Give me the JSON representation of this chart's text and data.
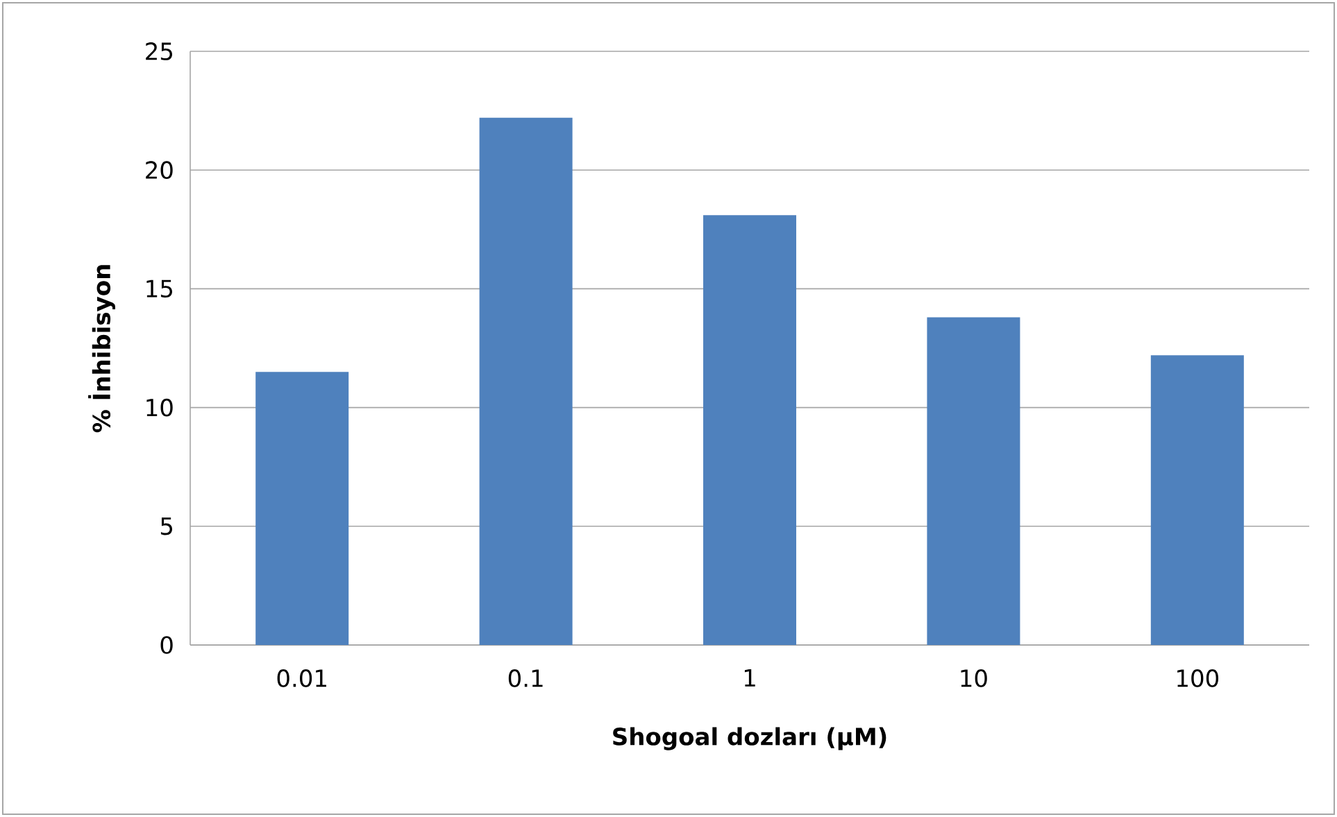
{
  "chart_data": {
    "type": "bar",
    "xlabel": "Shogoal dozları (µM)",
    "ylabel": "% İnhibisyon",
    "categories": [
      "0.01",
      "0.1",
      "1",
      "10",
      "100"
    ],
    "values": [
      11.5,
      22.2,
      18.1,
      13.8,
      12.2
    ],
    "color": "#4f81bd",
    "ylim": [
      0,
      25
    ],
    "yticks": [
      0,
      5,
      10,
      15,
      20,
      25
    ],
    "grid": "y"
  }
}
